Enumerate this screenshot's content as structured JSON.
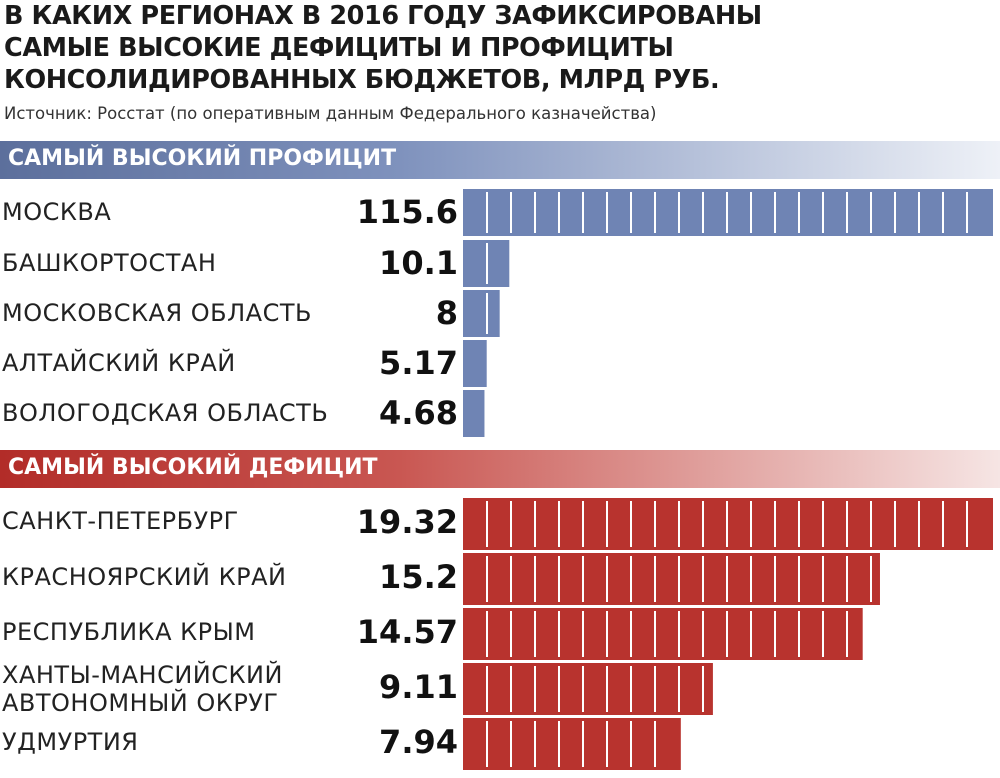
{
  "title_lines": [
    "В КАКИХ РЕГИОНАХ В 2016 ГОДУ ЗАФИКСИРОВАНЫ",
    "САМЫЕ ВЫСОКИЕ ДЕФИЦИТЫ И ПРОФИЦИТЫ",
    "КОНСОЛИДИРОВАННЫХ БЮДЖЕТОВ, МЛРД РУБ."
  ],
  "source": "Источник: Росстат (по оперативным данным Федерального казначейства)",
  "colors": {
    "surplus": "#6f84b4",
    "deficit": "#b8332e"
  },
  "chart_data": [
    {
      "type": "bar",
      "title": "САМЫЙ ВЫСОКИЙ ПРОФИЦИТ",
      "categories": [
        "МОСКВА",
        "БАШКОРТОСТАН",
        "МОСКОВСКАЯ ОБЛАСТЬ",
        "АЛТАЙСКИЙ КРАЙ",
        "ВОЛОГОДСКАЯ ОБЛАСТЬ"
      ],
      "value_labels": [
        "115.6",
        "10.1",
        "8",
        "5.17",
        "4.68"
      ],
      "values": [
        115.6,
        10.1,
        8,
        5.17,
        4.68
      ]
    },
    {
      "type": "bar",
      "title": "САМЫЙ ВЫСОКИЙ ДЕФИЦИТ",
      "categories": [
        "САНКТ-ПЕТЕРБУРГ",
        "КРАСНОЯРСКИЙ КРАЙ",
        "РЕСПУБЛИКА КРЫМ",
        "ХАНТЫ-МАНСИЙСКИЙ АВТОНОМНЫЙ ОКРУГ",
        "УДМУРТИЯ"
      ],
      "category_lines": [
        [
          "САНКТ-ПЕТЕРБУРГ"
        ],
        [
          "КРАСНОЯРСКИЙ КРАЙ"
        ],
        [
          "РЕСПУБЛИКА КРЫМ"
        ],
        [
          "ХАНТЫ-МАНСИЙСКИЙ",
          "АВТОНОМНЫЙ ОКРУГ"
        ],
        [
          "УДМУРТИЯ"
        ]
      ],
      "value_labels": [
        "19.32",
        "15.2",
        "14.57",
        "9.11",
        "7.94"
      ],
      "values": [
        19.32,
        15.2,
        14.57,
        9.11,
        7.94
      ]
    }
  ]
}
